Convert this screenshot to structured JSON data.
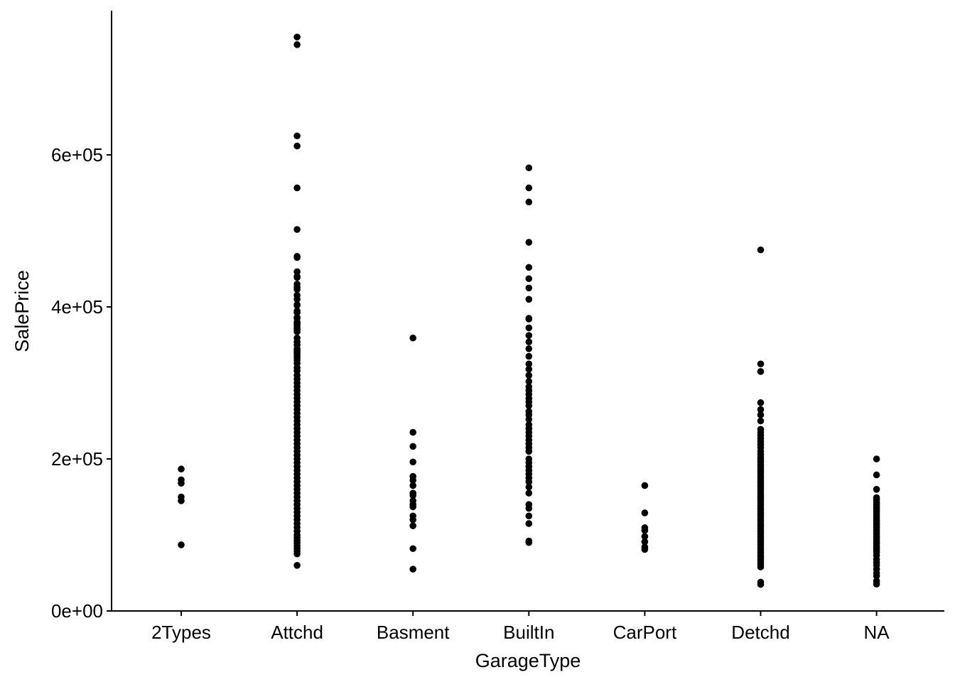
{
  "chart_data": {
    "type": "scatter",
    "xlabel": "GarageType",
    "ylabel": "SalePrice",
    "categories": [
      "2Types",
      "Attchd",
      "Basment",
      "BuiltIn",
      "CarPort",
      "Detchd",
      "NA"
    ],
    "ylim": [
      0,
      780000
    ],
    "yticks": [
      0,
      200000,
      400000,
      600000
    ],
    "ytick_labels": [
      "0e+00",
      "2e+05",
      "4e+05",
      "6e+05"
    ],
    "grid": false,
    "legend": "none",
    "point_color": "#000000",
    "points": {
      "2Types": [
        186700,
        172500,
        168000,
        150000,
        145000,
        87000
      ],
      "Attchd": [
        755000,
        745000,
        625000,
        611657,
        556581,
        501837,
        466500,
        465000,
        446261,
        440000,
        438780,
        430000,
        426000,
        423000,
        415298,
        410000,
        402861,
        402000,
        394617,
        392500,
        386250,
        385000,
        380000,
        378500,
        377500,
        375000,
        372500,
        370878,
        369900,
        367294,
        359100,
        354000,
        350000,
        345000,
        342643,
        340000,
        337500,
        335000,
        333168,
        330000,
        325624,
        320000,
        315750,
        310000,
        305000,
        300000,
        295000,
        290000,
        285000,
        280000,
        275000,
        270000,
        265000,
        260000,
        255000,
        250000,
        245000,
        240000,
        235000,
        230000,
        225000,
        220000,
        215000,
        210000,
        205000,
        200000,
        195000,
        190000,
        185000,
        180000,
        175000,
        170000,
        165000,
        160000,
        155000,
        150000,
        145000,
        140000,
        135000,
        130000,
        125000,
        120000,
        115000,
        110000,
        105000,
        100000,
        96500,
        93000,
        89500,
        86000,
        82500,
        79000,
        75000,
        60000
      ],
      "Basment": [
        359100,
        235000,
        216500,
        196000,
        177000,
        172000,
        165000,
        155000,
        152000,
        145000,
        140000,
        137000,
        125000,
        120000,
        112000,
        82000,
        55000
      ],
      "BuiltIn": [
        582933,
        556581,
        538000,
        485000,
        451950,
        437154,
        424870,
        410000,
        385000,
        383970,
        372402,
        362500,
        354000,
        345000,
        335000,
        325000,
        318000,
        310000,
        302000,
        295000,
        290000,
        285000,
        279500,
        275000,
        270000,
        262500,
        258000,
        252000,
        245000,
        240000,
        235000,
        230000,
        224900,
        220000,
        215000,
        210000,
        200000,
        195000,
        190000,
        185000,
        180000,
        175000,
        170000,
        163000,
        155000,
        140000,
        135000,
        125000,
        115000,
        92000,
        90000
      ],
      "CarPort": [
        165000,
        129000,
        109500,
        106000,
        98000,
        91000,
        84000,
        81000
      ],
      "Detchd": [
        475000,
        325000,
        315000,
        274000,
        265000,
        258000,
        250000,
        239000,
        235000,
        231000,
        227000,
        223000,
        219000,
        215000,
        210000,
        206000,
        202000,
        199000,
        196000,
        193000,
        190000,
        187000,
        184000,
        181000,
        178000,
        175000,
        172000,
        169000,
        166000,
        163000,
        160000,
        157000,
        154000,
        151000,
        148000,
        145000,
        142000,
        139000,
        136000,
        133000,
        130000,
        127000,
        124000,
        121000,
        118000,
        115000,
        112000,
        109000,
        106000,
        103000,
        100000,
        97000,
        94000,
        91000,
        88000,
        85000,
        82000,
        79000,
        76000,
        73000,
        70000,
        67000,
        64000,
        61000,
        58000,
        37900,
        34900
      ],
      "NA": [
        200000,
        179000,
        160000,
        149000,
        146000,
        143000,
        140000,
        137000,
        134000,
        131000,
        128000,
        125000,
        122000,
        119000,
        116000,
        113000,
        110000,
        107000,
        104000,
        101000,
        98000,
        95000,
        92000,
        89000,
        86000,
        83000,
        80000,
        77000,
        73000,
        68000,
        64000,
        60000,
        55000,
        50000,
        46000,
        39300,
        35311
      ]
    }
  }
}
